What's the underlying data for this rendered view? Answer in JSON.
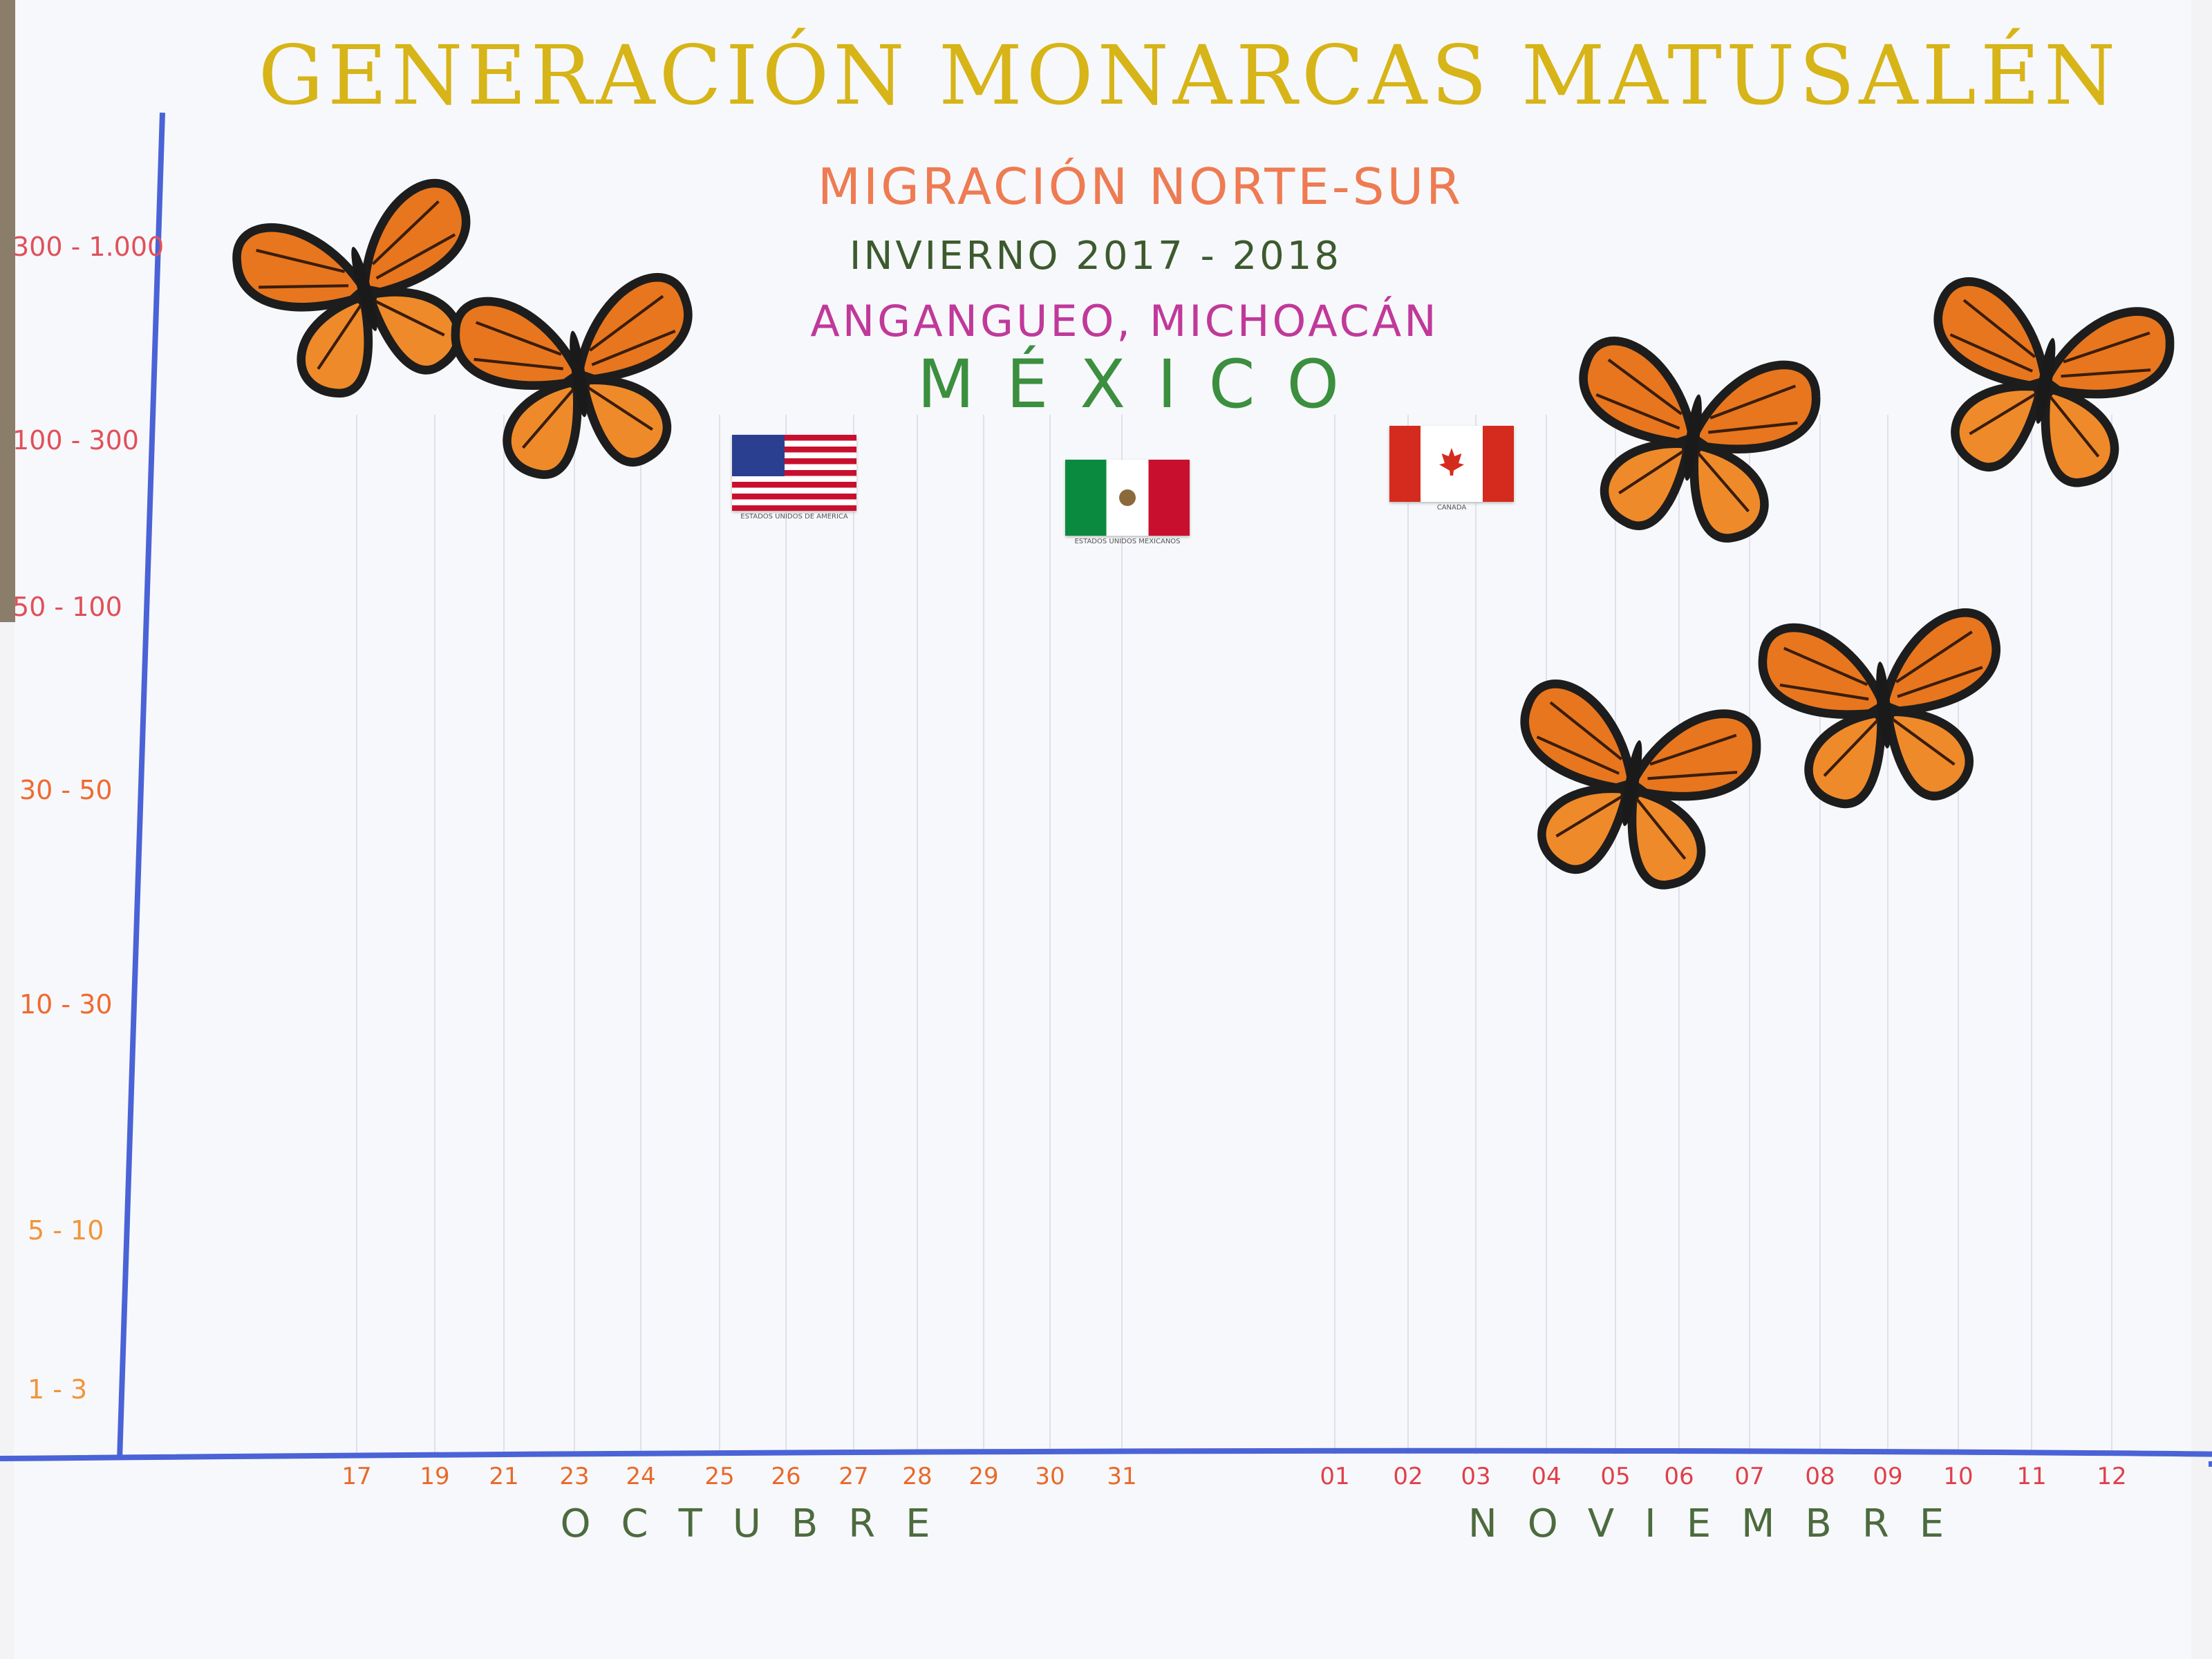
{
  "title": "GENERACIÓN MONARCAS MATUSALÉN",
  "subtitle": "MIGRACIÓN NORTE-SUR",
  "season": "INVIERNO 2017 - 2018",
  "place": "ANGANGUEO, MICHOACÁN",
  "country": "MÉXICO",
  "flags": [
    {
      "caption": "ESTADOS UNIDOS DE AMERICA",
      "icon": "us-flag-icon"
    },
    {
      "caption": "ESTADOS UNIDOS MEXICANOS",
      "icon": "mexico-flag-icon"
    },
    {
      "caption": "CANADA",
      "icon": "canada-flag-icon"
    }
  ],
  "colors": {
    "axis": "#4a63d6",
    "orange": "#e8761e",
    "title": "#d7b417"
  },
  "chart_data": {
    "type": "scatter",
    "y_ticks": [
      "300 - 1.000",
      "100 - 300",
      "50 - 100",
      "30 - 50",
      "10 - 30",
      "5 - 10",
      "1 - 3"
    ],
    "x_ticks": [
      "17",
      "19",
      "21",
      "23",
      "24",
      "25",
      "26",
      "27",
      "28",
      "29",
      "30",
      "31",
      "01",
      "02",
      "03",
      "04",
      "05",
      "06",
      "07",
      "08",
      "09",
      "10",
      "11",
      "12"
    ],
    "x_groups": [
      "OCTUBRE",
      "NOVIEMBRE"
    ],
    "grid": "vertical lines",
    "markers": [
      {
        "x": "17",
        "month": "OCTUBRE",
        "y": "300 - 1.000",
        "icon": "butterfly-icon"
      },
      {
        "x": "23",
        "month": "OCTUBRE",
        "y": "100 - 300",
        "icon": "butterfly-icon"
      },
      {
        "x": "05",
        "month": "NOVIEMBRE",
        "y": "100 - 300",
        "icon": "butterfly-icon"
      },
      {
        "x": "10",
        "month": "NOVIEMBRE",
        "y": "100 - 300",
        "icon": "butterfly-icon"
      },
      {
        "x": "08",
        "month": "NOVIEMBRE",
        "y": "50 - 100",
        "icon": "butterfly-icon"
      },
      {
        "x": "05",
        "month": "NOVIEMBRE",
        "y": "30 - 50",
        "icon": "butterfly-icon"
      }
    ]
  }
}
